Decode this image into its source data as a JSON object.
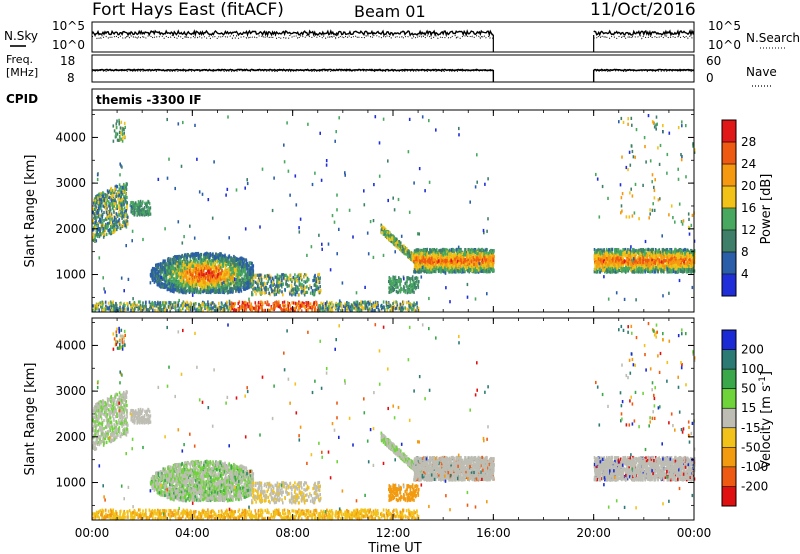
{
  "header": {
    "station": "Fort Hays East (fitACF)",
    "beam": "Beam 01",
    "date": "11/Oct/2016"
  },
  "noise_panel": {
    "left_label": "N.Sky",
    "right_label": "N.Search",
    "left_ticks": [
      "10^5",
      "10^0"
    ],
    "right_ticks": [
      "10^5",
      "10^0"
    ]
  },
  "freq_panel": {
    "left_label_1": "Freq.",
    "left_label_2": "[MHz]",
    "right_label": "Nave",
    "left_ticks": [
      "18",
      "8"
    ],
    "right_ticks": [
      "60",
      "0"
    ]
  },
  "cpid": {
    "label": "CPID",
    "value": "themis -3300 IF"
  },
  "colors": {
    "power": [
      "#1f2ed8",
      "#2a5ea8",
      "#3f7f6a",
      "#48a860",
      "#f2c219",
      "#f59a10",
      "#ef5a12",
      "#e01818"
    ],
    "velocity": [
      "#1a2bd6",
      "#2b7a74",
      "#3aa84a",
      "#6fd43a",
      "#bdbdb4",
      "#f2c21a",
      "#f29a10",
      "#ee5a12",
      "#e01010"
    ]
  },
  "chart_data": [
    {
      "type": "heatmap",
      "title": "",
      "xlabel": "",
      "ylabel": "Slant Range [km]",
      "x_ticks": [
        "00:00",
        "04:00",
        "08:00",
        "12:00",
        "16:00",
        "20:00",
        "00:00"
      ],
      "y_ticks": [
        "1000",
        "2000",
        "3000",
        "4000"
      ],
      "ylim": [
        180,
        4600
      ],
      "xlim_hours": [
        0,
        24
      ],
      "data_gap_hours": [
        16,
        20
      ],
      "colorbar": {
        "label": "Power [dB]",
        "tick_labels": [
          "4",
          "8",
          "12",
          "16",
          "20",
          "24",
          "28"
        ],
        "range": [
          0,
          32
        ]
      }
    },
    {
      "type": "heatmap",
      "title": "",
      "xlabel": "Time UT",
      "ylabel": "Slant Range [km]",
      "x_ticks": [
        "00:00",
        "04:00",
        "08:00",
        "12:00",
        "16:00",
        "20:00",
        "00:00"
      ],
      "y_ticks": [
        "1000",
        "2000",
        "3000",
        "4000"
      ],
      "ylim": [
        180,
        4600
      ],
      "xlim_hours": [
        0,
        24
      ],
      "data_gap_hours": [
        16,
        20
      ],
      "colorbar": {
        "label": "Velocity [m s",
        "label_sup": "-1",
        "label_end": "]",
        "tick_labels": [
          "200",
          "100",
          "50",
          "15",
          "-15",
          "-50",
          "-100",
          "-200"
        ]
      }
    }
  ]
}
